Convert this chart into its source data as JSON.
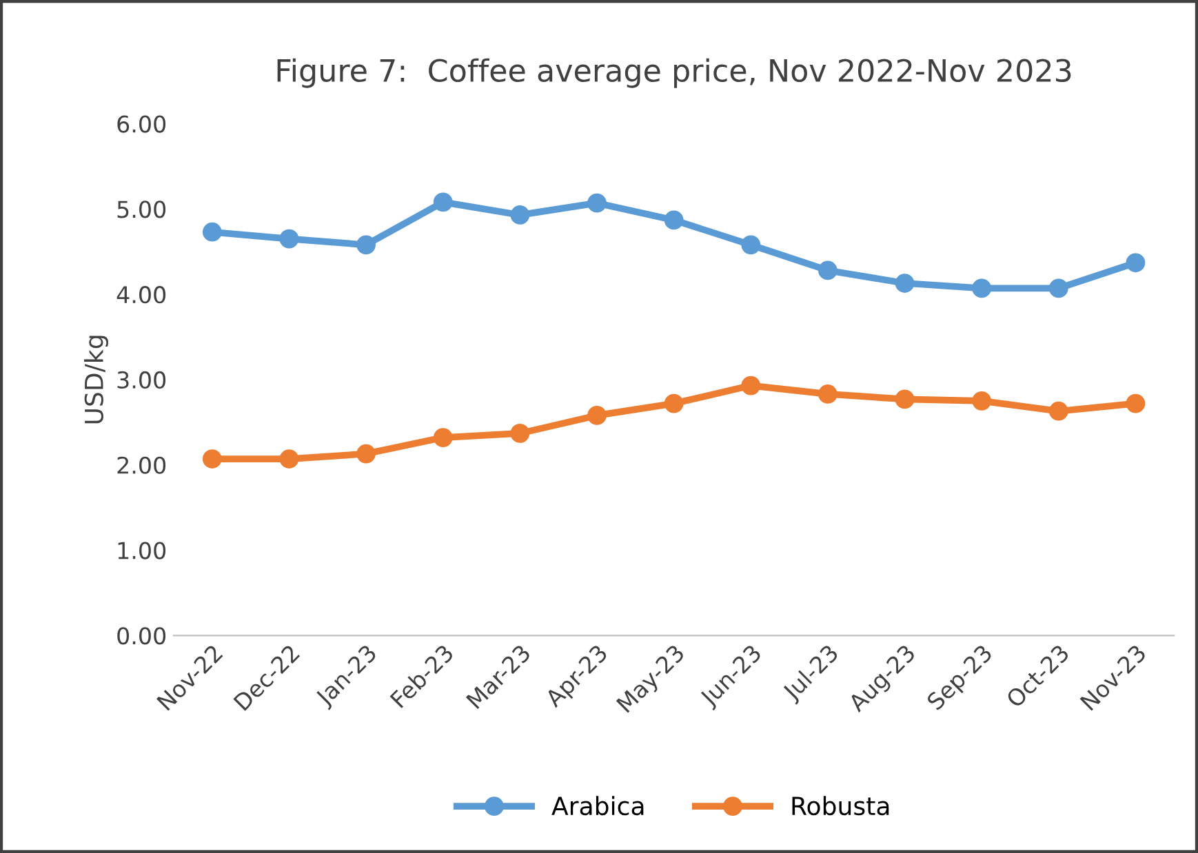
{
  "chart_data": {
    "type": "line",
    "title": "Figure 7:  Coffee average price, Nov 2022-Nov 2023",
    "ylabel": "USD/kg",
    "categories": [
      "Nov-22",
      "Dec-22",
      "Jan-23",
      "Feb-23",
      "Mar-23",
      "Apr-23",
      "May-23",
      "Jun-23",
      "Jul-23",
      "Aug-23",
      "Sep-23",
      "Oct-23",
      "Nov-23"
    ],
    "series": [
      {
        "name": "Arabica",
        "color": "#5b9bd5",
        "values": [
          4.73,
          4.65,
          4.58,
          5.08,
          4.93,
          5.07,
          4.87,
          4.58,
          4.28,
          4.13,
          4.07,
          4.07,
          4.37
        ]
      },
      {
        "name": "Robusta",
        "color": "#ed7d31",
        "values": [
          2.07,
          2.07,
          2.13,
          2.32,
          2.37,
          2.58,
          2.72,
          2.93,
          2.83,
          2.77,
          2.75,
          2.63,
          2.72
        ]
      }
    ],
    "ylim": [
      0,
      6
    ],
    "yticks": [
      {
        "value": 0,
        "label": "0.00"
      },
      {
        "value": 1,
        "label": "1.00"
      },
      {
        "value": 2,
        "label": "2.00"
      },
      {
        "value": 3,
        "label": "3.00"
      },
      {
        "value": 4,
        "label": "4.00"
      },
      {
        "value": 5,
        "label": "5.00"
      },
      {
        "value": 6,
        "label": "6.00"
      }
    ],
    "grid": false,
    "legend": "bottom",
    "marker": "circle",
    "line_style": "solid"
  }
}
